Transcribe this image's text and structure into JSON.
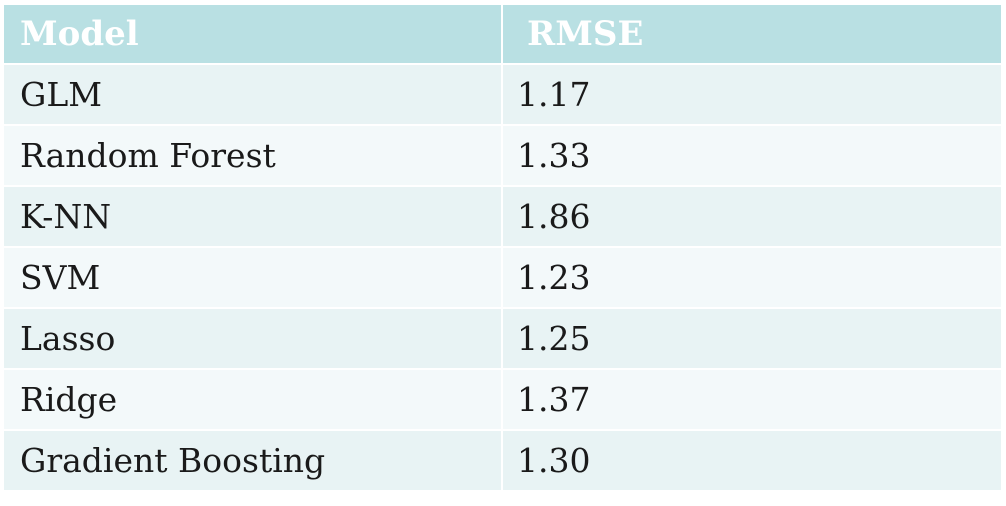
{
  "chart_data": {
    "type": "table",
    "columns": [
      "Model",
      "RMSE"
    ],
    "rows": [
      [
        "GLM",
        "1.17"
      ],
      [
        "Random Forest",
        "1.33"
      ],
      [
        "K-NN",
        "1.86"
      ],
      [
        "SVM",
        "1.23"
      ],
      [
        "Lasso",
        "1.25"
      ],
      [
        "Ridge",
        "1.37"
      ],
      [
        "Gradient Boosting",
        "1.30"
      ]
    ]
  },
  "colors": {
    "header_bg": "#b9e0e3",
    "header_text": "#ffffff",
    "row_odd_bg": "#e8f3f4",
    "row_even_bg": "#f3f9fa",
    "cell_text": "#1a1a1a"
  }
}
